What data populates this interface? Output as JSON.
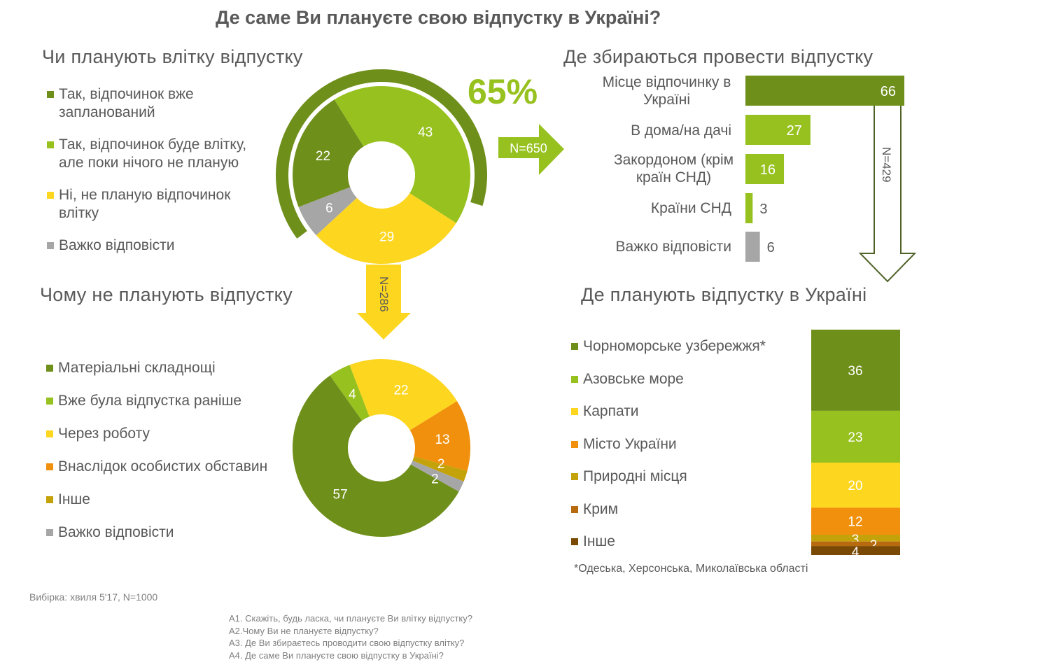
{
  "title": "Де саме Ви плануєте свою відпустку в Україні?",
  "colors": {
    "dark_green": "#6f8f1b",
    "light_green": "#97c11f",
    "yellow": "#fdd61f",
    "orange": "#f0900c",
    "olive": "#c3a20a",
    "brown": "#b86b0e",
    "dark_brown": "#7a4a05",
    "gray": "#a6a6a6"
  },
  "chart_data": [
    {
      "type": "pie",
      "title": "Чи планують влітку відпустку",
      "categories": [
        "Так, відпочинок вже запланований",
        "Так, відпочинок буде влітку, але поки нічого не планую",
        "Ні, не планую відпочинок влітку",
        "Важко відповісти"
      ],
      "values": [
        22,
        43,
        29,
        6
      ],
      "highlight_label": "65%",
      "highlight_value": 65,
      "n_label": "N=650"
    },
    {
      "type": "pie",
      "title": "Чому не планують відпустку",
      "categories": [
        "Матеріальні складнощі",
        "Вже була відпустка раніше",
        "Через роботу",
        "Внаслідок особистих обставин",
        "Інше",
        "Важко відповісти"
      ],
      "values": [
        57,
        4,
        22,
        13,
        2,
        2
      ],
      "n_label": "N=286"
    },
    {
      "type": "bar",
      "orientation": "horizontal",
      "title": "Де збираються провести відпустку",
      "categories": [
        "Місце відпочинку в Україні",
        "В дома/на дачі",
        "Закордоном (крім країн СНД)",
        "Країни СНД",
        "Важко відповісти"
      ],
      "values": [
        66,
        27,
        16,
        3,
        6
      ],
      "n_label": "N=429"
    },
    {
      "type": "bar",
      "stacked": true,
      "title": "Де планують відпустку в Україні",
      "categories": [
        "Чорноморське узбережжя*",
        "Азовське море",
        "Карпати",
        "Місто України",
        "Природні місця",
        "Крим",
        "Інше"
      ],
      "values": [
        36,
        23,
        20,
        12,
        3,
        2,
        4
      ],
      "footnote": "*Одеська, Херсонська, Миколаївська області"
    }
  ],
  "sample": "Вибірка: хвиля 5'17, N=1000",
  "questions": [
    "А1. Скажіть, будь ласка, чи плануєте Ви влітку відпустку?",
    "А2.Чому Ви не плануєте відпустку?",
    "А3. Де Ви збираєтесь проводити свою відпустку влітку?",
    "А4. Де саме Ви плануєте свою відпустку в Україні?"
  ]
}
